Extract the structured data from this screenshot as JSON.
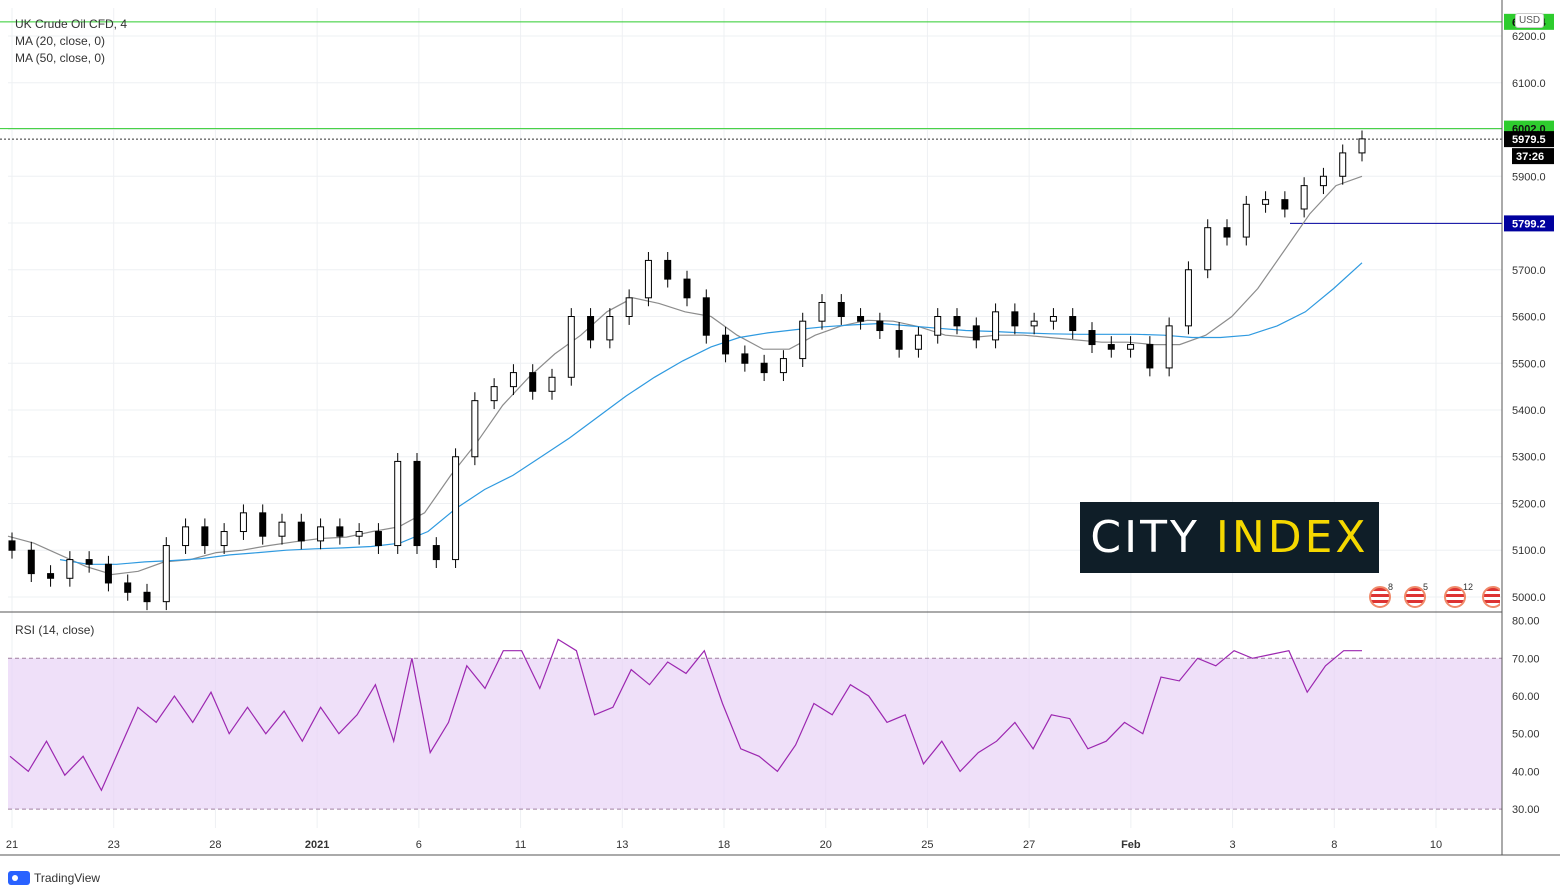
{
  "legend": {
    "symbol": "UK Crude Oil CFD, 4",
    "ma1": "MA (20, close, 0)",
    "ma2": "MA (50, close, 0)",
    "rsi": "RSI (14, close)"
  },
  "currency": "USD",
  "brand": {
    "part1": "CITY",
    "part2": "INDEX"
  },
  "footer_brand": "TradingView",
  "price_badges": {
    "resistance_top": "6230.4",
    "resistance_mid": "6002.0",
    "last_price": "5979.5",
    "countdown": "37:26",
    "support": "5799.2"
  },
  "colors": {
    "up": "#ffffff",
    "down": "#000000",
    "ma20": "#8c8c8c",
    "ma50": "#2f9ae0",
    "rsi": "#9c27b0",
    "rsi_band": "#e8d3f6",
    "support_line": "#00009e",
    "resistance_line": "#2ecc2e"
  },
  "event_flags": [
    {
      "icon": "us-flag-icon",
      "count": "8"
    },
    {
      "icon": "us-flag-icon",
      "count": "5"
    },
    {
      "icon": "us-flag-icon",
      "count": "12"
    },
    {
      "icon": "us-flag-icon",
      "count": ""
    }
  ],
  "chart_data": [
    {
      "type": "candlestick",
      "title": "UK Crude Oil CFD, 4",
      "y_ticks": [
        "5000.0",
        "5100.0",
        "5200.0",
        "5300.0",
        "5400.0",
        "5500.0",
        "5600.0",
        "5700.0",
        "5800.0",
        "5900.0",
        "6000.0",
        "6100.0",
        "6200.0"
      ],
      "ylim": [
        4970,
        6260
      ],
      "x_ticks": [
        "21",
        "23",
        "28",
        "2021",
        "6",
        "11",
        "13",
        "18",
        "20",
        "25",
        "27",
        "Feb",
        "3",
        "8",
        "10"
      ],
      "series": [
        {
          "name": "MA (20, close, 0)",
          "values": [
            5130,
            5115,
            5090,
            5065,
            5048,
            5055,
            5075,
            5080,
            5095,
            5100,
            5110,
            5118,
            5125,
            5128,
            5140,
            5150,
            5180,
            5260,
            5330,
            5410,
            5470,
            5520,
            5560,
            5610,
            5640,
            5628,
            5610,
            5600,
            5560,
            5530,
            5530,
            5560,
            5580,
            5592,
            5590,
            5578,
            5560,
            5555,
            5560,
            5560,
            5555,
            5550,
            5545,
            5545,
            5540,
            5540,
            5560,
            5600,
            5660,
            5740,
            5820,
            5880,
            5900
          ]
        },
        {
          "name": "MA (50, close, 0)",
          "values": [
            5080,
            5070,
            5070,
            5075,
            5078,
            5082,
            5090,
            5095,
            5100,
            5103,
            5105,
            5108,
            5115,
            5140,
            5190,
            5230,
            5260,
            5300,
            5340,
            5385,
            5430,
            5470,
            5505,
            5535,
            5555,
            5565,
            5572,
            5578,
            5582,
            5585,
            5580,
            5575,
            5570,
            5568,
            5565,
            5563,
            5562,
            5562,
            5562,
            5560,
            5555,
            5555,
            5560,
            5580,
            5610,
            5660,
            5715
          ]
        },
        {
          "name": "RSI (14, close)",
          "values": [
            44,
            40,
            48,
            39,
            44,
            35,
            46,
            57,
            53,
            60,
            53,
            61,
            50,
            57,
            50,
            56,
            48,
            57,
            50,
            55,
            63,
            48,
            70,
            45,
            53,
            68,
            62,
            72,
            72,
            62,
            75,
            72,
            55,
            57,
            67,
            63,
            69,
            66,
            72,
            58,
            46,
            44,
            40,
            47,
            58,
            55,
            63,
            60,
            53,
            55,
            42,
            48,
            40,
            45,
            48,
            53,
            46,
            55,
            54,
            46,
            48,
            53,
            50,
            65,
            64,
            70,
            68,
            72,
            70,
            71,
            72,
            61,
            68,
            72,
            72
          ]
        },
        {
          "name": "Price",
          "values": [
            5100,
            5050,
            5040,
            5080,
            5070,
            5030,
            5010,
            4990,
            5110,
            5150,
            5110,
            5140,
            5180,
            5130,
            5160,
            5120,
            5150,
            5130,
            5140,
            5110,
            5290,
            5110,
            5080,
            5300,
            5420,
            5450,
            5480,
            5440,
            5470,
            5600,
            5550,
            5600,
            5640,
            5720,
            5680,
            5640,
            5560,
            5520,
            5500,
            5480,
            5510,
            5590,
            5630,
            5600,
            5590,
            5570,
            5530,
            5560,
            5600,
            5580,
            5550,
            5610,
            5580,
            5590,
            5600,
            5570,
            5540,
            5530,
            5540,
            5490,
            5580,
            5700,
            5790,
            5770,
            5840,
            5850,
            5830,
            5880,
            5900,
            5950,
            5980
          ]
        }
      ],
      "horizontal_levels": [
        6230.4,
        6002.0,
        5979.5,
        5799.2
      ],
      "rsi_ylim": [
        25,
        82
      ],
      "rsi_ticks": [
        "30.00",
        "40.00",
        "50.00",
        "60.00",
        "70.00",
        "80.00"
      ],
      "rsi_band": [
        30,
        70
      ]
    }
  ]
}
